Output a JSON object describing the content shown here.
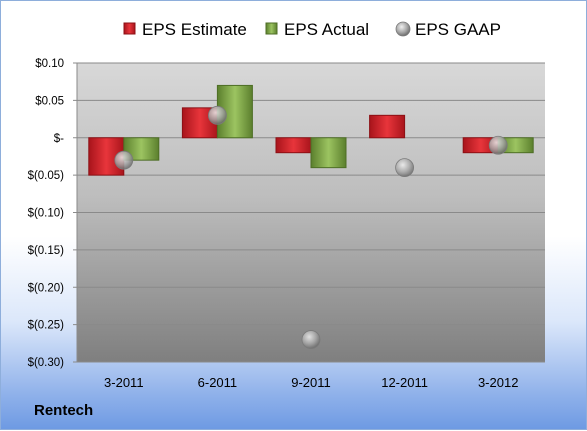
{
  "company": "Rentech",
  "chart_data": {
    "type": "bar",
    "categories": [
      "3-2011",
      "6-2011",
      "9-2011",
      "12-2011",
      "3-2012"
    ],
    "series": [
      {
        "name": "EPS Estimate",
        "kind": "bar",
        "color": "#d01f27",
        "values": [
          -0.05,
          0.04,
          -0.02,
          0.03,
          -0.02
        ]
      },
      {
        "name": "EPS Actual",
        "kind": "bar",
        "color": "#7da446",
        "values": [
          -0.03,
          0.07,
          -0.04,
          null,
          -0.02
        ]
      },
      {
        "name": "EPS GAAP",
        "kind": "marker",
        "color": "#a6a6a6",
        "values": [
          -0.03,
          0.03,
          -0.27,
          -0.04,
          -0.01
        ]
      }
    ],
    "ylim": [
      -0.3,
      0.1
    ],
    "yticks": [
      {
        "value": 0.1,
        "label": "$0.10"
      },
      {
        "value": 0.05,
        "label": "$0.05"
      },
      {
        "value": 0.0,
        "label": "$-"
      },
      {
        "value": -0.05,
        "label": "$(0.05)"
      },
      {
        "value": -0.1,
        "label": "$(0.10)"
      },
      {
        "value": -0.15,
        "label": "$(0.15)"
      },
      {
        "value": -0.2,
        "label": "$(0.20)"
      },
      {
        "value": -0.25,
        "label": "$(0.25)"
      },
      {
        "value": -0.3,
        "label": "$(0.30)"
      }
    ],
    "grid": true,
    "legend": "top"
  }
}
